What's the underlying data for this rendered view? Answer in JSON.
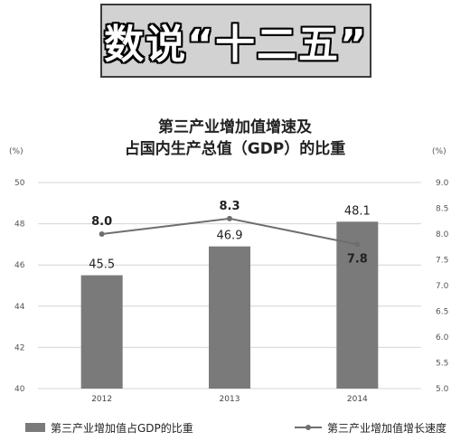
{
  "banner": {
    "text": "数说“十二五”"
  },
  "chart_data": {
    "type": "bar",
    "title_lines": [
      "第三产业增加值增速及",
      "占国内生产总值（GDP）的比重"
    ],
    "categories": [
      "2012",
      "2013",
      "2014"
    ],
    "left_axis": {
      "unit": "(%)",
      "ylim": [
        40,
        50
      ],
      "ticks": [
        40,
        42,
        44,
        46,
        48,
        50
      ]
    },
    "right_axis": {
      "unit": "(%)",
      "ylim": [
        5.0,
        9.0
      ],
      "ticks": [
        "5.0",
        "5.5",
        "6.0",
        "6.5",
        "7.0",
        "7.5",
        "8.0",
        "8.5",
        "9.0"
      ]
    },
    "series": [
      {
        "name": "第三产业增加值占GDP的比重",
        "type": "bar",
        "axis": "left",
        "values": [
          45.5,
          46.9,
          48.1
        ],
        "labels": [
          "45.5",
          "46.9",
          "48.1"
        ],
        "color": "#7a7a7a"
      },
      {
        "name": "第三产业增加值增长速度",
        "type": "line",
        "axis": "right",
        "values": [
          8.0,
          8.3,
          7.8
        ],
        "labels": [
          "8.0",
          "8.3",
          "7.8"
        ],
        "color": "#6e6e6e"
      }
    ],
    "grid": true,
    "legend_position": "bottom"
  }
}
